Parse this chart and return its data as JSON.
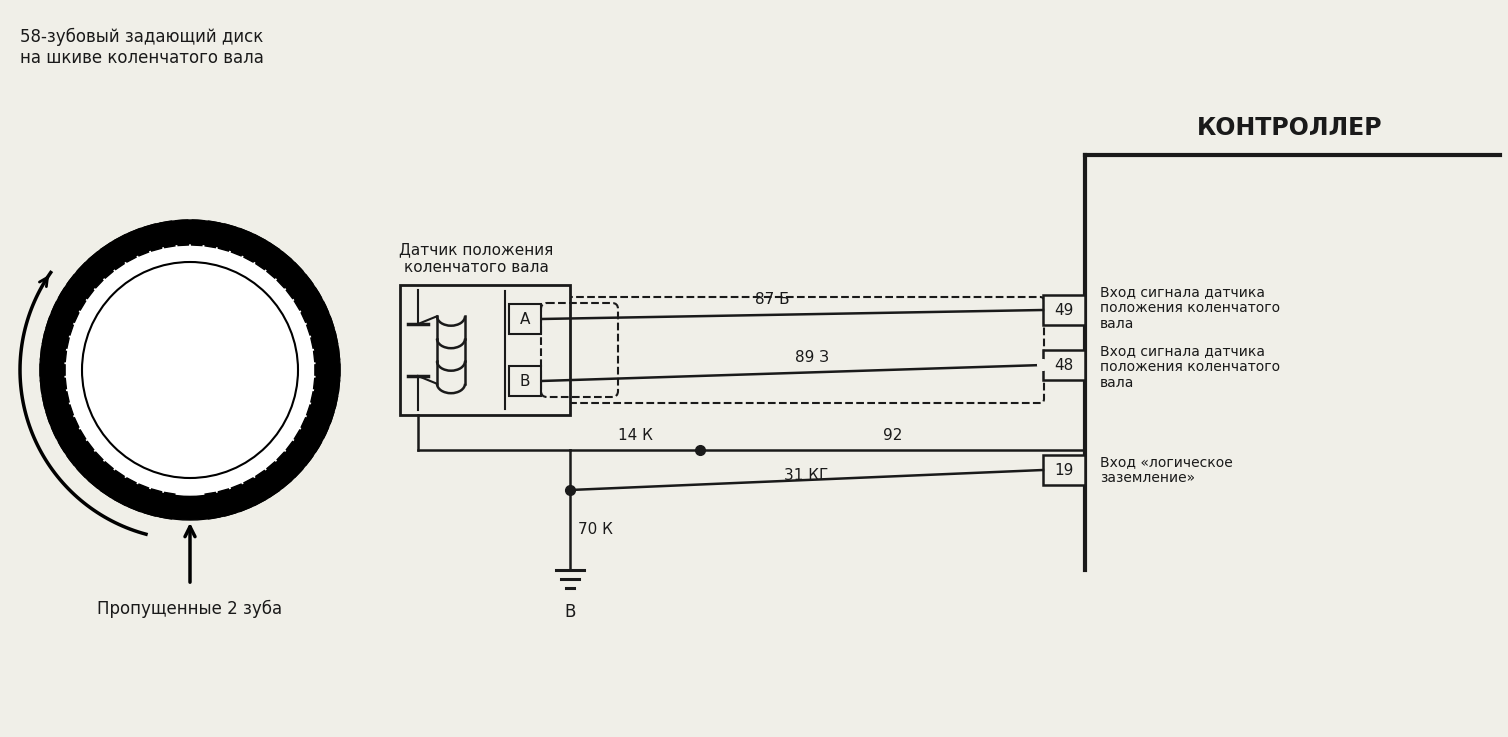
{
  "bg_color": "#f0efe8",
  "text_color": "#1a1a1a",
  "title_disk": "58-зубовый задающий диск\nна шкиве коленчатого вала",
  "label_missing_teeth": "Пропущенные 2 зуба",
  "label_sensor": "Датчик положения\nколенчатого вала",
  "label_controller": "КОНТРОЛЛЕР",
  "label_49": "49",
  "label_48": "48",
  "label_19": "19",
  "label_87b": "87 Б",
  "label_89z": "89 З",
  "label_14k": "14 К",
  "label_92": "92",
  "label_31kg": "31 КГ",
  "label_70k": "70 К",
  "label_A": "А",
  "label_B_sensor": "В",
  "label_B_ground": "В",
  "desc_49": "Вход сигнала датчика\nположения коленчатого\nвала",
  "desc_48": "Вход сигнала датчика\nположения коленчатого\nвала",
  "desc_19": "Вход «логическое\nзаземление»"
}
